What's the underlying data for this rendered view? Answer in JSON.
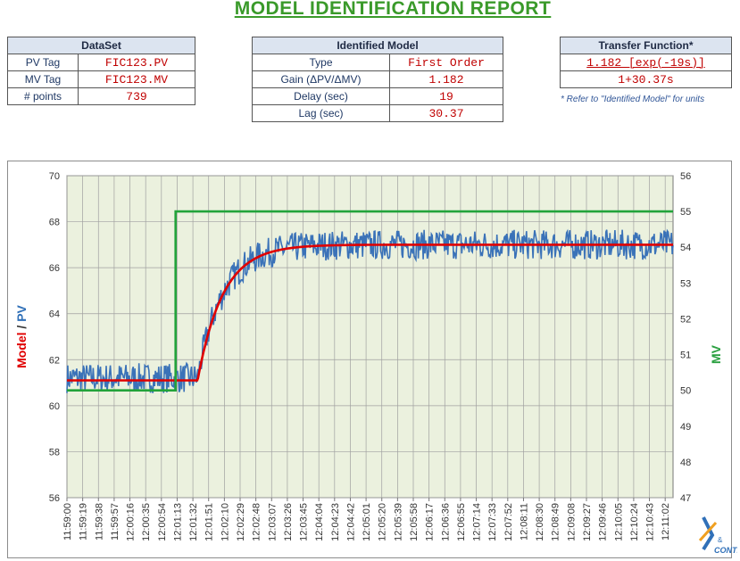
{
  "report_title": "MODEL IDENTIFICATION REPORT",
  "dataset": {
    "header": "DataSet",
    "rows": [
      {
        "label": "PV Tag",
        "value": "FIC123.PV"
      },
      {
        "label": "MV Tag",
        "value": "FIC123.MV"
      },
      {
        "label": "# points",
        "value": "739"
      }
    ]
  },
  "identified_model": {
    "header": "Identified Model",
    "rows": [
      {
        "label": "Type",
        "value": "First Order"
      },
      {
        "label": "Gain (ΔPV/ΔMV)",
        "value": "1.182"
      },
      {
        "label": "Delay (sec)",
        "value": "19"
      },
      {
        "label": "Lag (sec)",
        "value": "30.37"
      }
    ]
  },
  "transfer_function": {
    "header": "Transfer Function*",
    "numerator": "1.182 [exp(-19s)]",
    "denominator": "1+30.37s",
    "footnote": "* Refer to \"Identified Model\" for units"
  },
  "chart_data": {
    "type": "line",
    "left_axis": {
      "title_parts": [
        "Model",
        " / ",
        "PV"
      ],
      "title_colors": [
        "#e00000",
        "#333333",
        "#3070b8"
      ],
      "range": [
        56,
        70
      ],
      "ticks": [
        56,
        58,
        60,
        62,
        64,
        66,
        68,
        70
      ]
    },
    "right_axis": {
      "title": "MV",
      "title_color": "#2aa040",
      "range": [
        47,
        56
      ],
      "ticks": [
        47,
        48,
        49,
        50,
        51,
        52,
        53,
        54,
        55,
        56
      ]
    },
    "x_categories": [
      "11:59:00",
      "11:59:19",
      "11:59:38",
      "11:59:57",
      "12:00:16",
      "12:00:35",
      "12:00:54",
      "12:01:13",
      "12:01:32",
      "12:01:51",
      "12:02:10",
      "12:02:29",
      "12:02:48",
      "12:03:07",
      "12:03:26",
      "12:03:45",
      "12:04:04",
      "12:04:23",
      "12:04:42",
      "12:05:01",
      "12:05:20",
      "12:05:39",
      "12:05:58",
      "12:06:17",
      "12:06:36",
      "12:06:55",
      "12:07:14",
      "12:07:33",
      "12:07:52",
      "12:08:11",
      "12:08:30",
      "12:08:49",
      "12:09:08",
      "12:09:27",
      "12:09:46",
      "12:10:05",
      "12:10:24",
      "12:10:43",
      "12:11:02"
    ],
    "grid": true,
    "plot_background": "#ebf1de",
    "series": [
      {
        "name": "PV",
        "axis": "left",
        "color": "#3a72b8",
        "noisy": true,
        "baseline": 61.2,
        "final": 67.0,
        "noise_amplitude": 0.65,
        "step_index": 7.3,
        "delay_ticks": 1.0,
        "tau_ticks": 1.6
      },
      {
        "name": "Model",
        "axis": "left",
        "color": "#e00000",
        "baseline": 61.1,
        "final": 67.0,
        "step_index": 7.3,
        "delay_ticks": 1.0,
        "tau_ticks": 1.6
      },
      {
        "name": "MV",
        "axis": "right",
        "color": "#22a33a",
        "before": 50.0,
        "after": 55.0,
        "step_index": 6.9
      }
    ]
  },
  "logo_text": "CONTROL"
}
